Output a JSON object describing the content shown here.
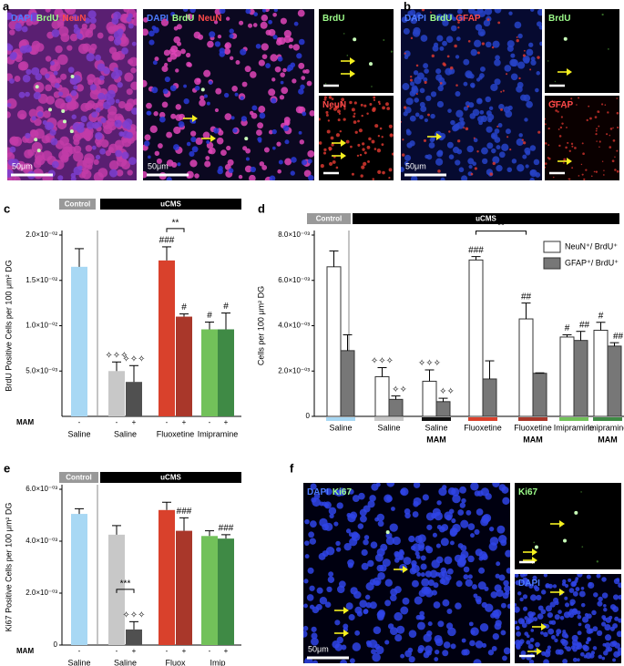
{
  "panel_labels": [
    "a",
    "b",
    "c",
    "d",
    "e",
    "f"
  ],
  "micrographs": [
    {
      "stains": [
        {
          "name": "DAPI",
          "color": "#4d7bff"
        },
        {
          "name": "BrdU",
          "color": "#9dfc8a"
        },
        {
          "name": "NeuN",
          "color": "#ff4a4a"
        }
      ],
      "scale": "50μm"
    },
    {
      "stains": [
        {
          "name": "DAPI",
          "color": "#4d7bff"
        },
        {
          "name": "BrdU",
          "color": "#9dfc8a"
        },
        {
          "name": "NeuN",
          "color": "#ff4a4a"
        }
      ],
      "scale": "50μm"
    },
    {
      "stains": [
        {
          "name": "BrdU",
          "color": "#9dfc8a"
        }
      ]
    },
    {
      "stains": [
        {
          "name": "NeuN",
          "color": "#ff4a4a"
        }
      ]
    },
    {
      "stains": [
        {
          "name": "DAPI",
          "color": "#4d7bff"
        },
        {
          "name": "BrdU",
          "color": "#9dfc8a"
        },
        {
          "name": "GFAP",
          "color": "#ff4a4a"
        }
      ],
      "scale": "50μm"
    },
    {
      "stains": [
        {
          "name": "BrdU",
          "color": "#9dfc8a"
        }
      ]
    },
    {
      "stains": [
        {
          "name": "GFAP",
          "color": "#ff4a4a"
        }
      ]
    },
    {
      "stains": [
        {
          "name": "DAPI",
          "color": "#4d7bff"
        },
        {
          "name": "Ki67",
          "color": "#9dfc8a"
        }
      ],
      "scale": "50μm"
    },
    {
      "stains": [
        {
          "name": "Ki67",
          "color": "#9dfc8a"
        }
      ]
    },
    {
      "stains": [
        {
          "name": "DAPI",
          "color": "#4d7bff"
        }
      ]
    }
  ],
  "chart_data": [
    {
      "type": "bar",
      "header": [
        "Control",
        "uCMS"
      ],
      "ylabel": "BrdU Positive Cells per 100 μm² DG",
      "row_label": "MAM",
      "ylim": [
        0,
        0.02
      ],
      "yticks": [
        {
          "value": 0.005,
          "label": "5.0×10⁻⁰³"
        },
        {
          "value": 0.01,
          "label": "1.0×10⁻⁰²"
        },
        {
          "value": 0.015,
          "label": "1.5×10⁻⁰²"
        },
        {
          "value": 0.02,
          "label": "2.0×10⁻⁰²"
        }
      ],
      "groups": [
        {
          "name": "Saline",
          "bars": [
            {
              "mam": "-",
              "value": 0.0165,
              "error": 0.002,
              "color": "#a8d8f4"
            }
          ]
        },
        {
          "name": "Saline",
          "bars": [
            {
              "mam": "-",
              "value": 0.005,
              "error": 0.001,
              "color": "#c8c8c8",
              "annotation": "✧✧✧"
            },
            {
              "mam": "+",
              "value": 0.0038,
              "error": 0.0018,
              "color": "#505050",
              "annotation": "✧✧✧"
            }
          ]
        },
        {
          "name": "Fluoxetine",
          "comparison": "**",
          "bars": [
            {
              "mam": "-",
              "value": 0.0172,
              "error": 0.0015,
              "color": "#d9412c",
              "annotation": "###"
            },
            {
              "mam": "+",
              "value": 0.011,
              "error": 0.0003,
              "color": "#a9372a",
              "annotation": "#"
            }
          ]
        },
        {
          "name": "Imipramine",
          "bars": [
            {
              "mam": "-",
              "value": 0.0096,
              "error": 0.0008,
              "color": "#72c15a",
              "annotation": "#"
            },
            {
              "mam": "+",
              "value": 0.0096,
              "error": 0.0018,
              "color": "#3f8a45",
              "annotation": "#"
            }
          ]
        }
      ]
    },
    {
      "type": "grouped-bar",
      "header": [
        "Control",
        "uCMS"
      ],
      "ylabel": "Cells per 100 μm² DG",
      "ylim": [
        0,
        0.008
      ],
      "yticks": [
        0,
        {
          "value": 0.002,
          "label": "2.0×10⁻⁰³"
        },
        {
          "value": 0.004,
          "label": "4.0×10⁻⁰³"
        },
        {
          "value": 0.006,
          "label": "6.0×10⁻⁰³"
        },
        {
          "value": 0.008,
          "label": "8.0×10⁻⁰³"
        }
      ],
      "categories": [
        {
          "name": "Saline",
          "color": "#a8d8f4"
        },
        {
          "name": "Saline",
          "color": "#c8c8c8"
        },
        {
          "name": "Saline",
          "sub": "MAM",
          "color": "#111111"
        },
        {
          "name": "Fluoxetine",
          "color": "#d9412c"
        },
        {
          "name": "Fluoxetine",
          "sub": "MAM",
          "color": "#a9372a"
        },
        {
          "name": "Imipramine",
          "color": "#72c15a"
        },
        {
          "name": "Imipramine",
          "sub": "MAM",
          "color": "#3f8a45"
        }
      ],
      "series": [
        {
          "name": "NeuN⁺/ BrdU⁺",
          "color": "#ffffff",
          "values": [
            0.0066,
            0.00175,
            0.00155,
            0.0069,
            0.0043,
            0.0035,
            0.0038
          ],
          "errors": [
            0.0007,
            0.0004,
            0.0005,
            0.00015,
            0.0007,
            0.0001,
            0.00035
          ],
          "annotations": [
            null,
            "✧✧✧",
            "✧✧✧",
            "###",
            "##",
            "#",
            "#"
          ]
        },
        {
          "name": "GFAP⁺/ BrdU⁺",
          "color": "#777777",
          "values": [
            0.0029,
            0.00075,
            0.00065,
            0.00165,
            0.0019,
            0.00335,
            0.0031
          ],
          "errors": [
            0.0007,
            0.00015,
            0.00015,
            0.0008,
            2e-05,
            0.0004,
            0.00015
          ],
          "annotations": [
            null,
            "✧✧",
            "✧✧",
            null,
            null,
            "##",
            "##"
          ]
        }
      ],
      "comparisons": [
        {
          "label": "**",
          "categories": [
            3,
            4
          ]
        }
      ]
    },
    {
      "type": "bar",
      "header": [
        "Control",
        "uCMS"
      ],
      "ylabel": "Ki67 Positive Cells per 100 μm² DG",
      "row_label": "MAM",
      "ylim": [
        0,
        0.006
      ],
      "yticks": [
        0,
        {
          "value": 0.002,
          "label": "2.0×10⁻⁰³"
        },
        {
          "value": 0.004,
          "label": "4.0×10⁻⁰³"
        },
        {
          "value": 0.006,
          "label": "6.0×10⁻⁰³"
        }
      ],
      "groups": [
        {
          "name": "Saline",
          "bars": [
            {
              "mam": "-",
              "value": 0.00505,
              "error": 0.0002,
              "color": "#a8d8f4"
            }
          ]
        },
        {
          "name": "Saline",
          "comparison": "***",
          "bars": [
            {
              "mam": "-",
              "value": 0.00425,
              "error": 0.00035,
              "color": "#c8c8c8"
            },
            {
              "mam": "+",
              "value": 0.0006,
              "error": 0.0003,
              "color": "#505050",
              "annotation": "✧✧✧"
            }
          ]
        },
        {
          "name": "Fluox",
          "bars": [
            {
              "mam": "-",
              "value": 0.0052,
              "error": 0.0003,
              "color": "#d9412c"
            },
            {
              "mam": "+",
              "value": 0.0044,
              "error": 0.0005,
              "color": "#a9372a",
              "annotation": "###"
            }
          ]
        },
        {
          "name": "Imip",
          "bars": [
            {
              "mam": "-",
              "value": 0.0042,
              "error": 0.0002,
              "color": "#72c15a"
            },
            {
              "mam": "+",
              "value": 0.0041,
              "error": 0.00015,
              "color": "#3f8a45",
              "annotation": "###"
            }
          ]
        }
      ]
    }
  ]
}
